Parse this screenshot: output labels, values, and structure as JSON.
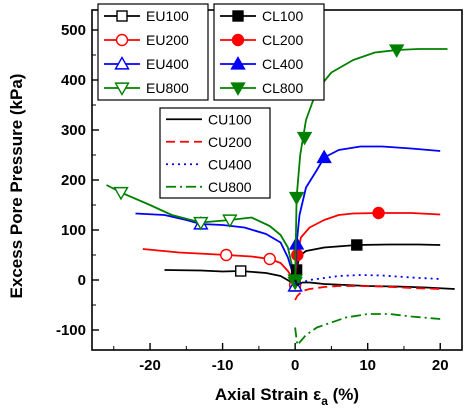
{
  "chart_data": {
    "type": "line",
    "xlabel": "Axial Strain ε",
    "xlabel_sub": "a",
    "xlabel_suffix": " (%)",
    "ylabel": "Excess Pore Pressure (kPa)",
    "xlim": [
      -28,
      23
    ],
    "ylim": [
      -140,
      540
    ],
    "xticks": [
      -20,
      -10,
      0,
      10,
      20
    ],
    "yticks": [
      -100,
      0,
      100,
      200,
      300,
      400,
      500
    ],
    "grid": false,
    "legends": [
      {
        "position": "top-left",
        "entries": [
          "EU100",
          "EU200",
          "EU400",
          "EU800"
        ]
      },
      {
        "position": "top-center",
        "entries": [
          "CL100",
          "CL200",
          "CL400",
          "CL800"
        ]
      },
      {
        "position": "center-left",
        "entries": [
          "CU100",
          "CU200",
          "CU400",
          "CU800"
        ]
      }
    ],
    "series": [
      {
        "name": "EU100",
        "color": "#000000",
        "dash": "solid",
        "marker": "square-open",
        "points": [
          [
            -18,
            20
          ],
          [
            -13,
            19
          ],
          [
            -10,
            17
          ],
          [
            -7.5,
            18
          ],
          [
            -4,
            14
          ],
          [
            -2,
            8
          ],
          [
            -0.8,
            -2
          ],
          [
            -0.3,
            -8
          ],
          [
            0,
            -12
          ]
        ],
        "markers": [
          [
            -7.5,
            18
          ],
          [
            0,
            -12
          ]
        ]
      },
      {
        "name": "EU200",
        "color": "#ff0000",
        "dash": "solid",
        "marker": "circle-open",
        "points": [
          [
            -21,
            62
          ],
          [
            -16,
            55
          ],
          [
            -12,
            52
          ],
          [
            -9.5,
            50
          ],
          [
            -6,
            47
          ],
          [
            -3.5,
            42
          ],
          [
            -2,
            34
          ],
          [
            -1,
            18
          ],
          [
            -0.3,
            2
          ],
          [
            0,
            -10
          ]
        ],
        "markers": [
          [
            -9.5,
            50
          ],
          [
            -3.5,
            42
          ],
          [
            0,
            -10
          ]
        ]
      },
      {
        "name": "EU400",
        "color": "#0000ff",
        "dash": "solid",
        "marker": "triangle-up-open",
        "points": [
          [
            -22,
            133
          ],
          [
            -18,
            130
          ],
          [
            -15,
            120
          ],
          [
            -13,
            112
          ],
          [
            -10,
            110
          ],
          [
            -7,
            105
          ],
          [
            -4,
            92
          ],
          [
            -2,
            75
          ],
          [
            -1,
            45
          ],
          [
            -0.3,
            12
          ],
          [
            0,
            -12
          ]
        ],
        "markers": [
          [
            -13,
            112
          ],
          [
            0,
            -12
          ]
        ]
      },
      {
        "name": "EU800",
        "color": "#008000",
        "dash": "solid",
        "marker": "triangle-down-open",
        "points": [
          [
            -26,
            190
          ],
          [
            -24,
            175
          ],
          [
            -20,
            150
          ],
          [
            -17,
            130
          ],
          [
            -13,
            115
          ],
          [
            -9,
            120
          ],
          [
            -6,
            125
          ],
          [
            -3.5,
            108
          ],
          [
            -2,
            90
          ],
          [
            -1,
            65
          ],
          [
            -0.3,
            20
          ],
          [
            0,
            -5
          ]
        ],
        "markers": [
          [
            -24,
            175
          ],
          [
            -13,
            115
          ],
          [
            -9,
            120
          ],
          [
            0,
            -5
          ]
        ]
      },
      {
        "name": "CL100",
        "color": "#000000",
        "dash": "solid",
        "marker": "square-filled",
        "points": [
          [
            0,
            0
          ],
          [
            0.2,
            20
          ],
          [
            0.6,
            48
          ],
          [
            1.5,
            58
          ],
          [
            4,
            65
          ],
          [
            8.5,
            70
          ],
          [
            13,
            71
          ],
          [
            17,
            71
          ],
          [
            20,
            70
          ]
        ],
        "markers": [
          [
            0.2,
            20
          ],
          [
            8.5,
            70
          ]
        ]
      },
      {
        "name": "CL200",
        "color": "#ff0000",
        "dash": "solid",
        "marker": "circle-filled",
        "points": [
          [
            0,
            0
          ],
          [
            0.3,
            50
          ],
          [
            0.8,
            85
          ],
          [
            2,
            105
          ],
          [
            4,
            120
          ],
          [
            6,
            130
          ],
          [
            8,
            133
          ],
          [
            11.5,
            134
          ],
          [
            16,
            134
          ],
          [
            20,
            131
          ]
        ],
        "markers": [
          [
            0.3,
            50
          ],
          [
            11.5,
            134
          ]
        ]
      },
      {
        "name": "CL400",
        "color": "#0000ff",
        "dash": "solid",
        "marker": "triangle-up-filled",
        "points": [
          [
            0,
            0
          ],
          [
            0.2,
            72
          ],
          [
            0.6,
            130
          ],
          [
            1.5,
            185
          ],
          [
            3,
            220
          ],
          [
            4,
            245
          ],
          [
            6,
            260
          ],
          [
            9,
            267
          ],
          [
            12,
            267
          ],
          [
            16,
            263
          ],
          [
            20,
            258
          ]
        ],
        "markers": [
          [
            0.2,
            72
          ],
          [
            4,
            245
          ]
        ]
      },
      {
        "name": "CL800",
        "color": "#008000",
        "dash": "solid",
        "marker": "triangle-down-filled",
        "points": [
          [
            0,
            0
          ],
          [
            0.2,
            165
          ],
          [
            0.7,
            250
          ],
          [
            1.5,
            320
          ],
          [
            3,
            380
          ],
          [
            5,
            415
          ],
          [
            8,
            440
          ],
          [
            11,
            455
          ],
          [
            14,
            460
          ],
          [
            17,
            462
          ],
          [
            21,
            462
          ]
        ],
        "markers": [
          [
            0,
            0
          ],
          [
            0.2,
            165
          ],
          [
            1.3,
            285
          ],
          [
            14,
            460
          ]
        ]
      },
      {
        "name": "CU100",
        "color": "#000000",
        "dash": "solid",
        "marker": "none",
        "points": [
          [
            0,
            0
          ],
          [
            0.3,
            -10
          ],
          [
            1,
            -5
          ],
          [
            2,
            -5
          ],
          [
            4,
            -8
          ],
          [
            7,
            -10
          ],
          [
            10,
            -12
          ],
          [
            14,
            -13
          ],
          [
            18,
            -15
          ],
          [
            22,
            -18
          ]
        ],
        "markers": []
      },
      {
        "name": "CU200",
        "color": "#ff0000",
        "dash": "dash",
        "marker": "none",
        "points": [
          [
            0,
            -40
          ],
          [
            0.3,
            -32
          ],
          [
            1,
            -22
          ],
          [
            2,
            -18
          ],
          [
            4,
            -14
          ],
          [
            6,
            -12
          ],
          [
            9,
            -12
          ],
          [
            12,
            -13
          ],
          [
            16,
            -16
          ],
          [
            20,
            -18
          ]
        ],
        "markers": []
      },
      {
        "name": "CU400",
        "color": "#0000ff",
        "dash": "dot",
        "marker": "none",
        "points": [
          [
            0,
            -5
          ],
          [
            0.3,
            -10
          ],
          [
            1,
            -5
          ],
          [
            2,
            0
          ],
          [
            4,
            4
          ],
          [
            6,
            8
          ],
          [
            9,
            10
          ],
          [
            12,
            9
          ],
          [
            16,
            5
          ],
          [
            20,
            2
          ]
        ],
        "markers": []
      },
      {
        "name": "CU800",
        "color": "#008000",
        "dash": "dashdot",
        "marker": "none",
        "points": [
          [
            0,
            -95
          ],
          [
            0.3,
            -130
          ],
          [
            0.6,
            -125
          ],
          [
            1.5,
            -110
          ],
          [
            3,
            -95
          ],
          [
            5,
            -85
          ],
          [
            7,
            -75
          ],
          [
            10,
            -68
          ],
          [
            13,
            -68
          ],
          [
            16,
            -73
          ],
          [
            20,
            -78
          ]
        ],
        "markers": []
      }
    ]
  }
}
